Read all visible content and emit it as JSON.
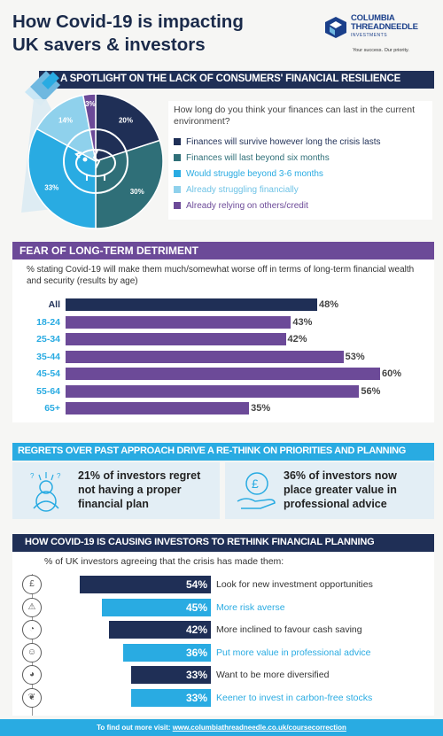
{
  "title_line1": "How Covid-19 is impacting",
  "title_line2": "UK savers & investors",
  "logo": {
    "name_line1": "COLUMBIA",
    "name_line2": "THREADNEEDLE",
    "name_line3": "INVESTMENTS",
    "tagline": "Your success. Our priority."
  },
  "section1": {
    "heading": "A SPOTLIGHT ON THE LACK OF CONSUMERS' FINANCIAL RESILIENCE",
    "question": "How long do you think your finances can last in the current environment?"
  },
  "section2": {
    "heading": "FEAR OF LONG-TERM DETRIMENT",
    "note": "% stating Covid-19 will make them much/somewhat worse off in terms of long-term financial wealth and security (results by age)"
  },
  "section3": {
    "heading": "REGRETS OVER PAST APPROACH DRIVE A RE-THINK ON PRIORITIES AND PLANNING",
    "left_line1": "21% of investors regret",
    "left_line2": "not having a proper",
    "left_line3": "financial plan",
    "right_line1": "36% of investors now",
    "right_line2": "place greater value in",
    "right_line3": "professional advice"
  },
  "section4": {
    "heading": "HOW COVID-19 IS CAUSING INVESTORS TO RETHINK FINANCIAL PLANNING",
    "note": "% of UK investors agreeing that the crisis has made them:"
  },
  "footer": {
    "text": "To find out more visit: ",
    "link": "www.columbiathreadneedle.co.uk/coursecorrection"
  },
  "colors": {
    "navy": "#1f2f56",
    "teal": "#2f6f78",
    "cyan": "#29abe2",
    "light_cyan": "#8fd1ec",
    "purple": "#6c4a98"
  },
  "chart_data": [
    {
      "type": "pie",
      "labels": [
        "Finances will survive however long the crisis lasts",
        "Finances will last beyond six months",
        "Would struggle beyond 3-6 months",
        "Already struggling financially",
        "Already relying on others/credit"
      ],
      "values": [
        20,
        30,
        33,
        14,
        3
      ],
      "value_labels": [
        "20%",
        "30%",
        "33%",
        "14%",
        "3%"
      ],
      "colors": [
        "#1f2f56",
        "#2f6f78",
        "#29abe2",
        "#8fd1ec",
        "#6c4a98"
      ],
      "label_colors": [
        "#1f2f56",
        "#2f6f78",
        "#29abe2",
        "#6fc3e6",
        "#6c4a98"
      ]
    },
    {
      "type": "bar",
      "orientation": "horizontal",
      "categories": [
        "All",
        "18-24",
        "25-34",
        "35-44",
        "45-54",
        "55-64",
        "65+"
      ],
      "values": [
        48,
        43,
        42,
        53,
        60,
        56,
        35
      ],
      "value_labels": [
        "48%",
        "43%",
        "42%",
        "53%",
        "60%",
        "56%",
        "35%"
      ],
      "colors": [
        "#1f2f56",
        "#6c4a98",
        "#6c4a98",
        "#6c4a98",
        "#6c4a98",
        "#6c4a98",
        "#6c4a98"
      ],
      "label_colors": [
        "#1f2f56",
        "#29abe2",
        "#29abe2",
        "#29abe2",
        "#29abe2",
        "#29abe2",
        "#29abe2"
      ]
    },
    {
      "type": "bar",
      "orientation": "horizontal",
      "categories": [
        "Look for new investment opportunities",
        "More risk averse",
        "More inclined to favour cash saving",
        "Put more value in professional advice",
        "Want to be more diversified",
        "Keener to invest in carbon-free stocks"
      ],
      "values": [
        54,
        45,
        42,
        36,
        33,
        33
      ],
      "value_labels": [
        "54%",
        "45%",
        "42%",
        "36%",
        "33%",
        "33%"
      ],
      "colors": [
        "#1f2f56",
        "#29abe2",
        "#1f2f56",
        "#29abe2",
        "#1f2f56",
        "#29abe2"
      ],
      "icons": [
        "money-hand-icon",
        "warning-icon",
        "piggy-bank-icon",
        "advisor-icon",
        "pie-chart-icon",
        "leaf-icon"
      ]
    }
  ]
}
